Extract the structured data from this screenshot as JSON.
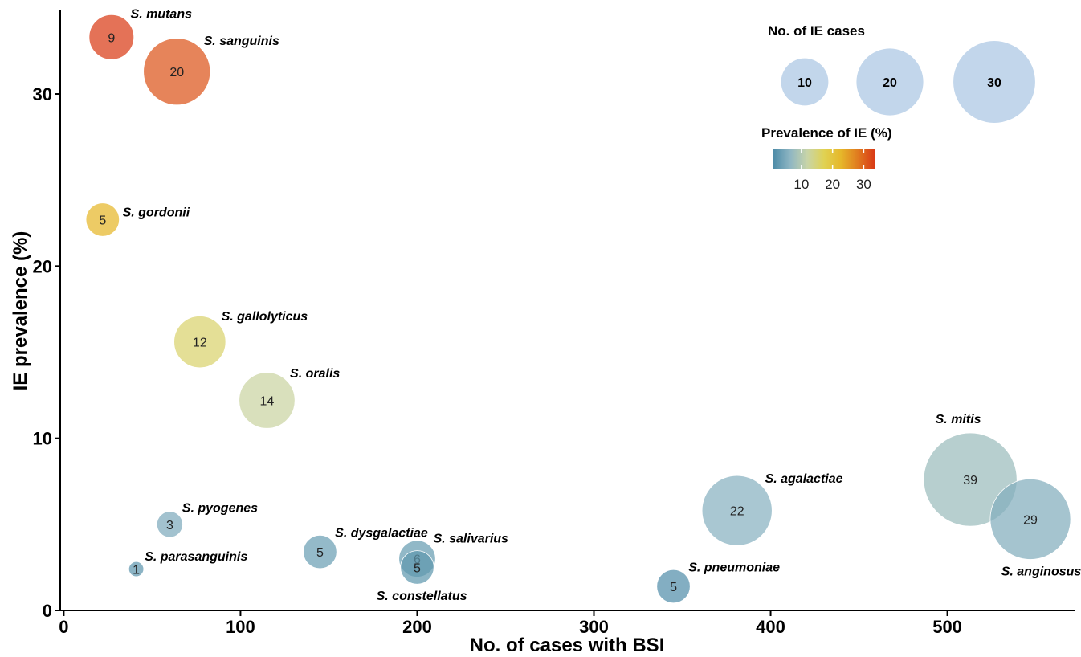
{
  "chart_data": {
    "type": "scatter",
    "xlabel": "No. of cases with BSI",
    "ylabel": "IE prevalence (%)",
    "xlim": [
      -2,
      572
    ],
    "ylim": [
      0,
      34.9
    ],
    "xticks": [
      0,
      100,
      200,
      300,
      400,
      500
    ],
    "yticks": [
      0,
      10,
      20,
      30
    ],
    "grid": false,
    "points": [
      {
        "species": "S. mutans",
        "bsi": 27,
        "prevalence": 33.3,
        "ie_cases": 9,
        "label_pos": "upper-right"
      },
      {
        "species": "S. sanguinis",
        "bsi": 64,
        "prevalence": 31.3,
        "ie_cases": 20,
        "label_pos": "upper-right"
      },
      {
        "species": "S. gordonii",
        "bsi": 22,
        "prevalence": 22.7,
        "ie_cases": 5,
        "label_pos": "right"
      },
      {
        "species": "S. gallolyticus",
        "bsi": 77,
        "prevalence": 15.6,
        "ie_cases": 12,
        "label_pos": "upper-right"
      },
      {
        "species": "S. oralis",
        "bsi": 115,
        "prevalence": 12.2,
        "ie_cases": 14,
        "label_pos": "upper-right"
      },
      {
        "species": "S. pyogenes",
        "bsi": 60,
        "prevalence": 5.0,
        "ie_cases": 3,
        "label_pos": "upper-right"
      },
      {
        "species": "S. parasanguinis",
        "bsi": 41,
        "prevalence": 2.4,
        "ie_cases": 1,
        "label_pos": "upper-right"
      },
      {
        "species": "S. dysgalactiae",
        "bsi": 145,
        "prevalence": 3.4,
        "ie_cases": 5,
        "label_pos": "upper-right"
      },
      {
        "species": "S. salivarius",
        "bsi": 200,
        "prevalence": 3.0,
        "ie_cases": 6,
        "label_pos": "upper-right"
      },
      {
        "species": "S. constellatus",
        "bsi": 200,
        "prevalence": 2.5,
        "ie_cases": 5,
        "label_pos": "below"
      },
      {
        "species": "S. pneumoniae",
        "bsi": 345,
        "prevalence": 1.4,
        "ie_cases": 5,
        "label_pos": "upper-right"
      },
      {
        "species": "S. agalactiae",
        "bsi": 381,
        "prevalence": 5.8,
        "ie_cases": 22,
        "label_pos": "upper-right"
      },
      {
        "species": "S. mitis",
        "bsi": 513,
        "prevalence": 7.6,
        "ie_cases": 39,
        "label_pos": "above"
      },
      {
        "species": "S. anginosus",
        "bsi": 547,
        "prevalence": 5.3,
        "ie_cases": 29,
        "label_pos": "below"
      }
    ],
    "size_legend": {
      "title": "No. of IE cases",
      "values": [
        10,
        20,
        30
      ]
    },
    "color_legend": {
      "title": "Prevalence of IE (%)",
      "ticks": [
        10,
        20,
        30
      ],
      "range": [
        1,
        33.5
      ],
      "gradient_colors": [
        "#4e8ca8",
        "#8fb6c3",
        "#c8d4a8",
        "#e0d253",
        "#e6b72a",
        "#e07b1f",
        "#d93a16"
      ]
    },
    "colors": {
      "bubble_fill": "#8fb6c3",
      "legend_bubble": "#b7cfe8"
    }
  }
}
